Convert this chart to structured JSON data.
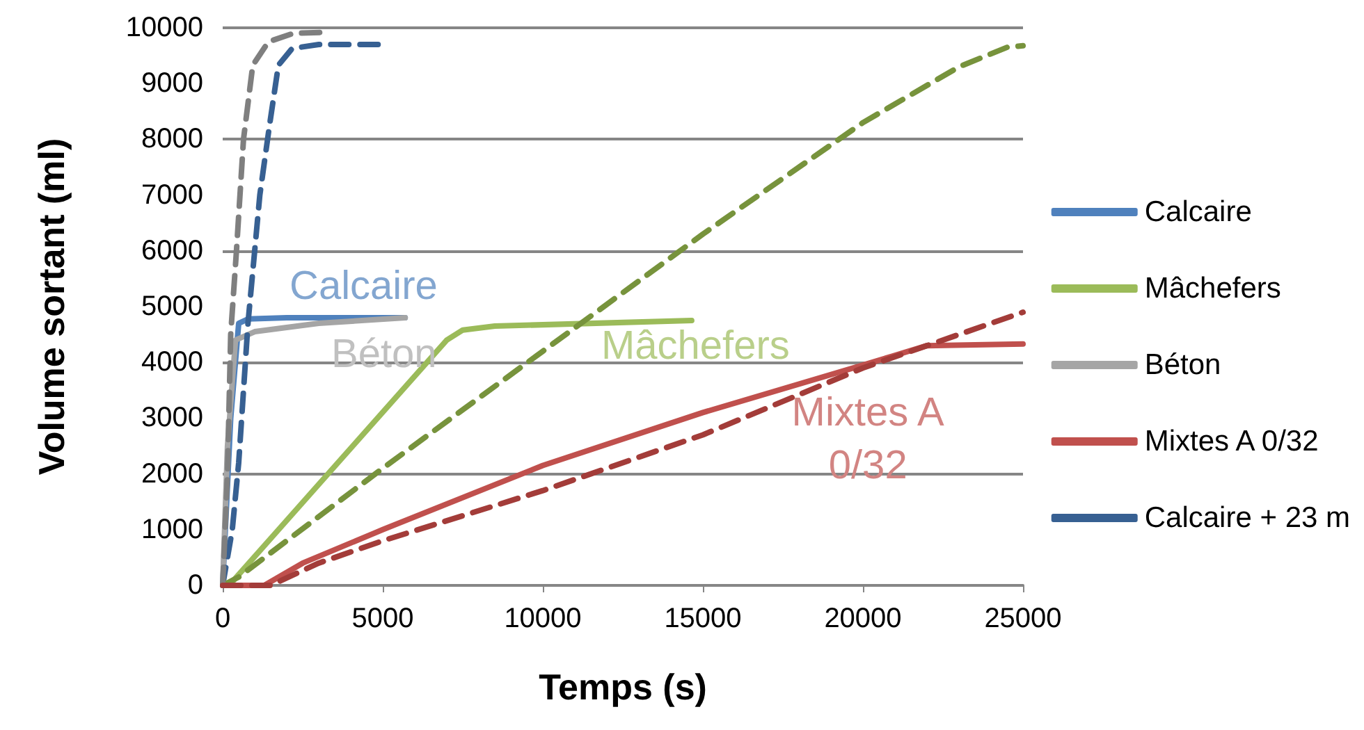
{
  "chart_data": {
    "type": "line",
    "xlabel": "Temps (s)",
    "ylabel": "Volume sortant (ml)",
    "xlim": [
      0,
      25000
    ],
    "xticks": [
      0,
      5000,
      10000,
      15000,
      20000,
      25000
    ],
    "ylim": [
      0,
      10000
    ],
    "yticks": [
      0,
      1000,
      2000,
      3000,
      4000,
      5000,
      6000,
      7000,
      8000,
      9000,
      10000
    ],
    "grid": "y",
    "legend": "right",
    "marker": "none",
    "series": [
      {
        "name": "Calcaire",
        "color": "#4f81bd",
        "line_style": "solid",
        "x": [
          0,
          250,
          500,
          800,
          2000,
          5700
        ],
        "values": [
          0,
          3000,
          4700,
          4780,
          4800,
          4800
        ]
      },
      {
        "name": "Mâchefers",
        "color": "#9bbb59",
        "line_style": "solid",
        "x": [
          200,
          7000,
          7500,
          8500,
          14650
        ],
        "values": [
          0,
          4400,
          4580,
          4650,
          4750
        ]
      },
      {
        "name": "Béton",
        "color": "#a5a5a5",
        "line_style": "solid",
        "x": [
          0,
          150,
          400,
          1000,
          3000,
          5700
        ],
        "values": [
          0,
          2500,
          4400,
          4550,
          4700,
          4800
        ]
      },
      {
        "name": "Mixtes A 0/32",
        "color": "#c0504d",
        "line_style": "solid",
        "x": [
          0,
          1300,
          2500,
          5000,
          10000,
          15000,
          20000,
          22000,
          25000
        ],
        "values": [
          0,
          0,
          400,
          1000,
          2150,
          3100,
          3950,
          4300,
          4330
        ]
      },
      {
        "name": "Calcaire + 23 m",
        "color": "#376092",
        "line_style": "dashed",
        "x": [
          0,
          300,
          500,
          790,
          1160,
          1450,
          1740,
          2170,
          3000,
          5070
        ],
        "values": [
          0,
          1000,
          2200,
          4700,
          7000,
          8200,
          9330,
          9630,
          9700,
          9700
        ]
      },
      {
        "color": "#77933c",
        "line_style": "dashed",
        "x": [
          0,
          500,
          5000,
          10000,
          15000,
          20000,
          23000,
          24500,
          25000
        ],
        "values": [
          0,
          150,
          2100,
          4200,
          6300,
          8300,
          9300,
          9650,
          9680
        ]
      },
      {
        "color": "#7f7f7f",
        "line_style": "dashed",
        "x": [
          0,
          150,
          250,
          430,
          650,
          940,
          1430,
          2200,
          3200
        ],
        "values": [
          0,
          2000,
          4500,
          6000,
          8000,
          9330,
          9750,
          9900,
          9920
        ]
      },
      {
        "color": "#a33c39",
        "line_style": "dashed",
        "x": [
          0,
          1500,
          3000,
          5000,
          10000,
          15000,
          20000,
          22000,
          25000
        ],
        "values": [
          0,
          0,
          400,
          800,
          1700,
          2700,
          3900,
          4300,
          4900
        ]
      }
    ],
    "annotations": [
      "Calcaire",
      "Mâchefers",
      "Béton",
      "Mixtes A\n0/32"
    ]
  }
}
